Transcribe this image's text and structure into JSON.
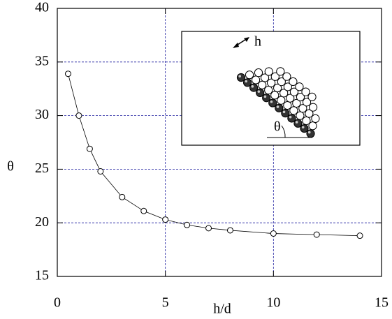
{
  "chart_data": {
    "type": "line",
    "x_label": "h/d",
    "y_label": "θ",
    "x": [
      0.5,
      1,
      1.5,
      2,
      3,
      4,
      5,
      6,
      7,
      8,
      10,
      12,
      14
    ],
    "series": [
      {
        "color": "#000000",
        "values": [
          33.9,
          30.0,
          26.9,
          24.8,
          22.4,
          21.1,
          20.3,
          19.8,
          19.5,
          19.3,
          19.0,
          18.9,
          18.8
        ]
      }
    ],
    "xlim": [
      0,
      15
    ],
    "xticks": [
      0,
      5,
      10,
      15
    ],
    "ylim": [
      15,
      40
    ],
    "yticks": [
      15,
      20,
      25,
      30,
      35,
      40
    ],
    "grid": true,
    "annotations": [
      "h",
      "θ"
    ]
  }
}
